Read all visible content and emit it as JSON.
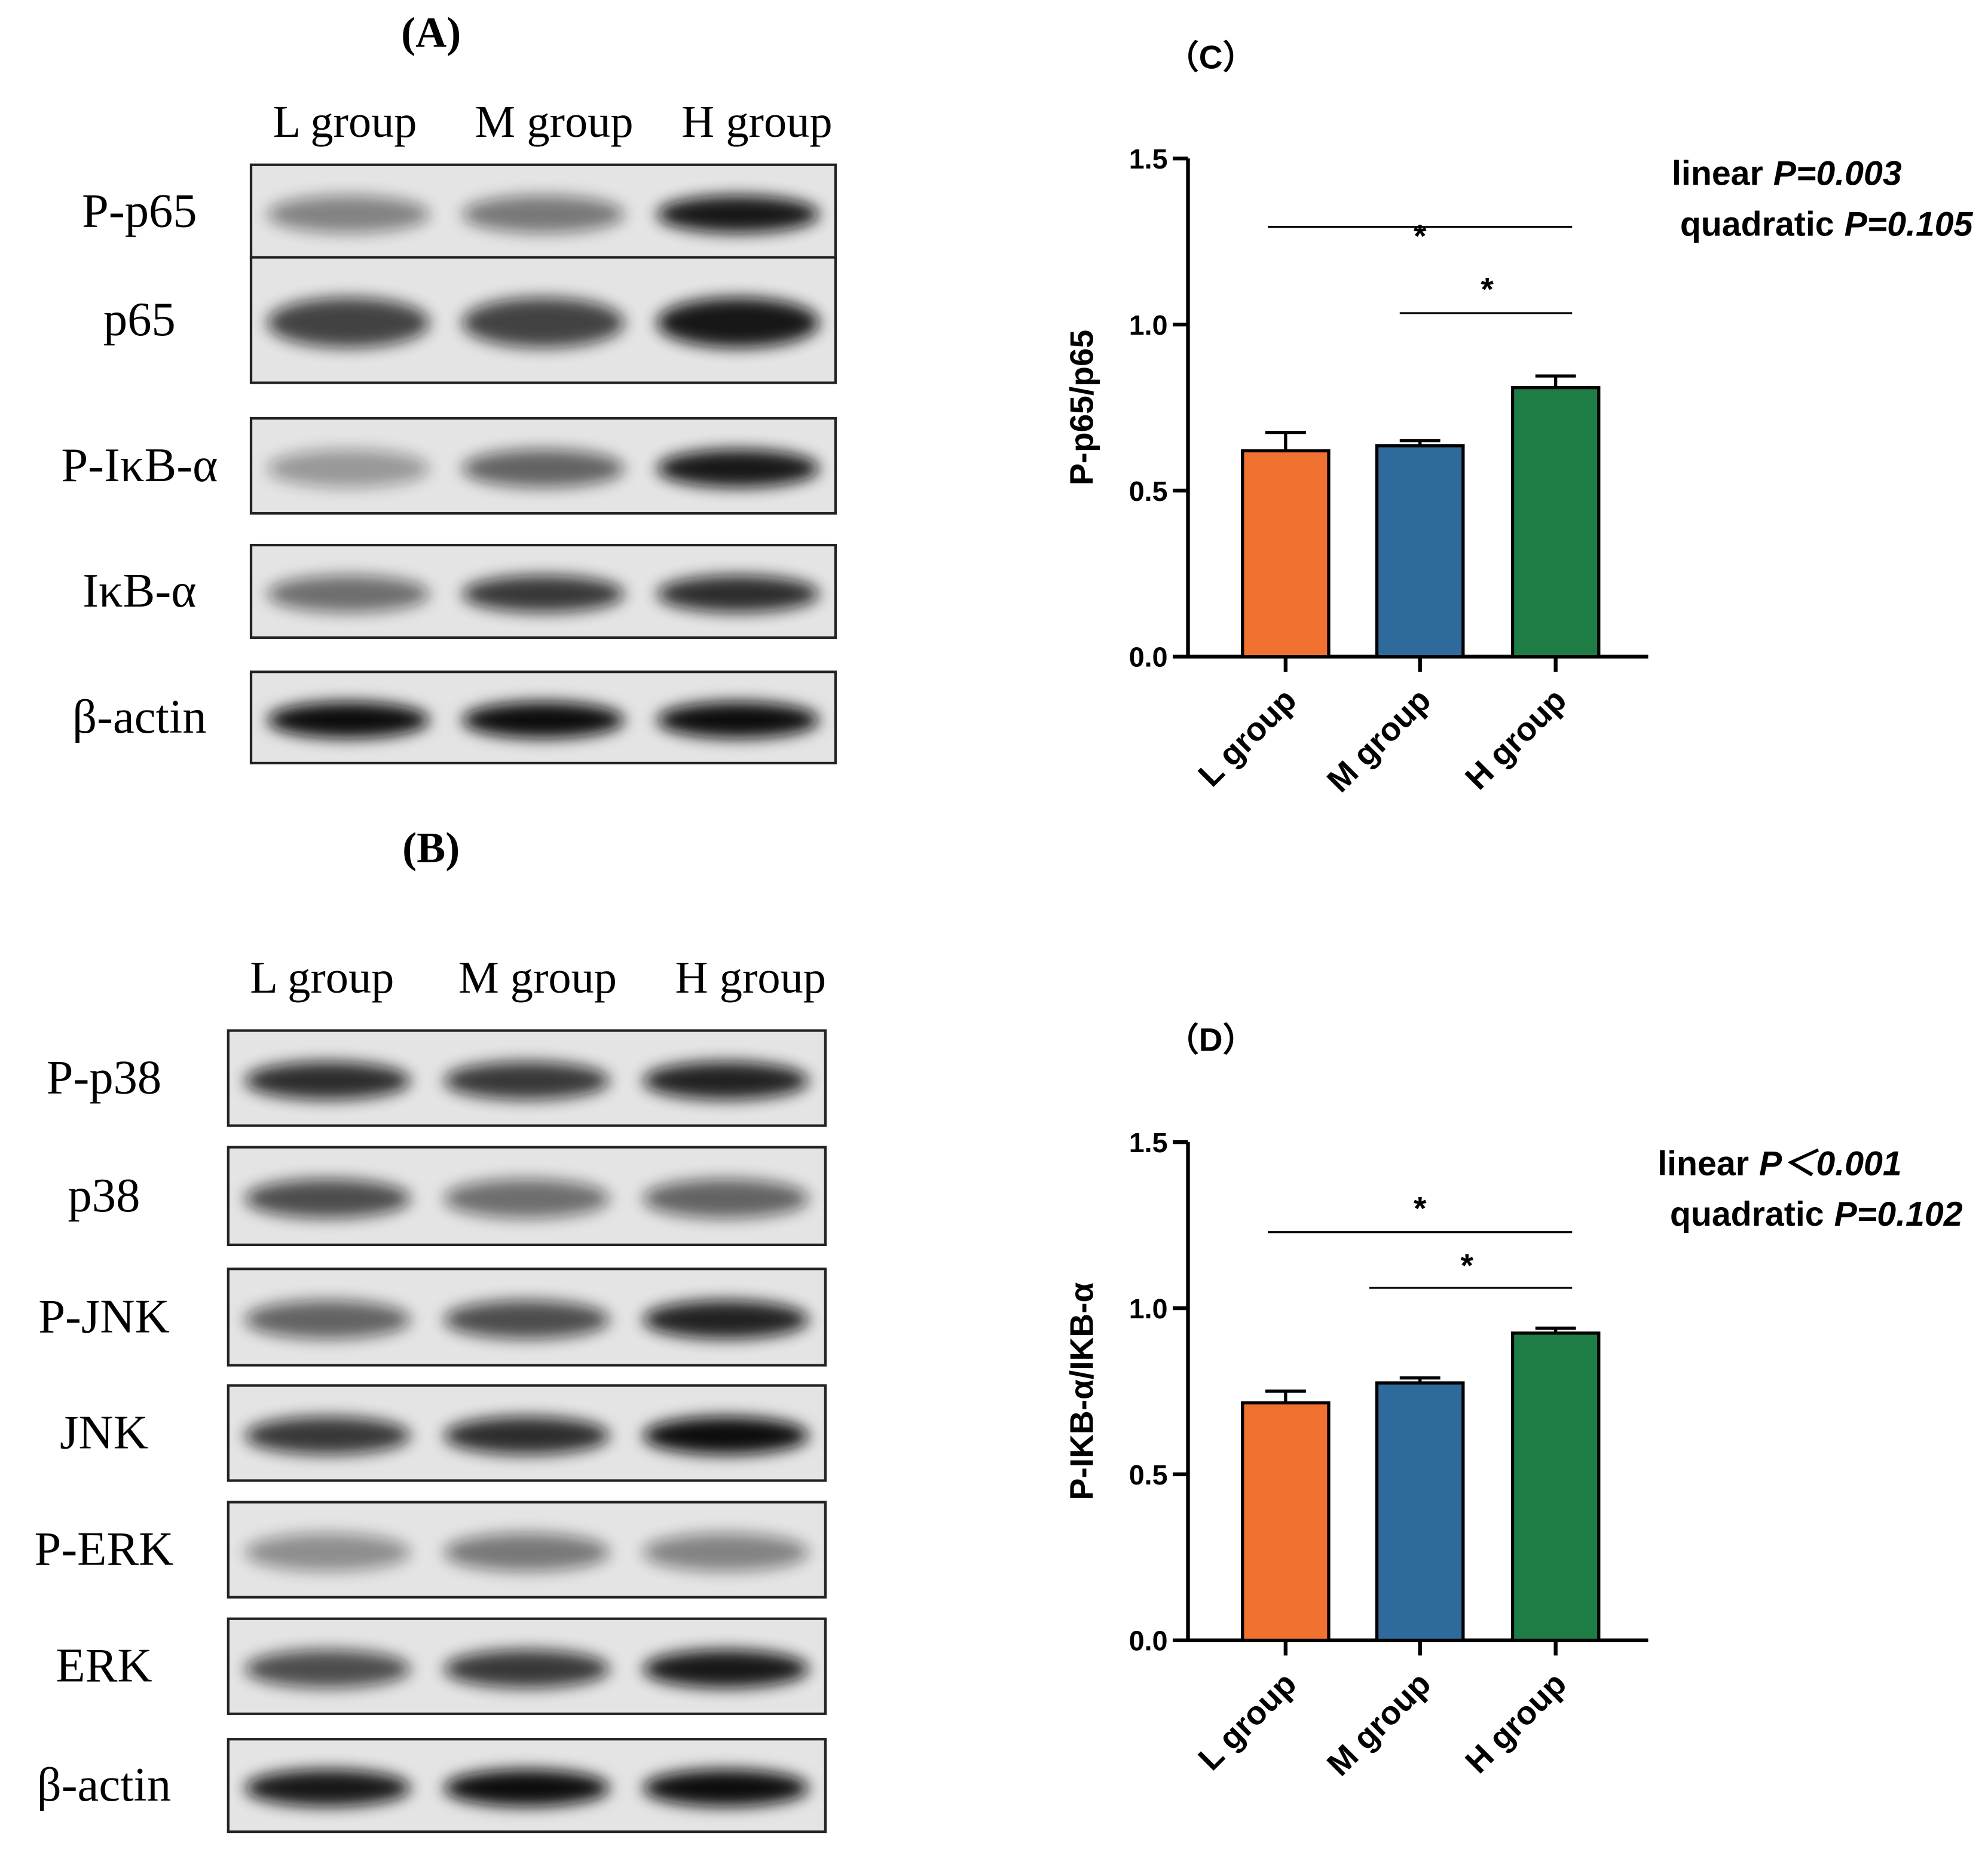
{
  "blots": [
    {
      "label": "(A)",
      "columns": [
        "L group",
        "M group",
        "H group"
      ],
      "rows": [
        "P-p65",
        "p65",
        "P-IκB-α",
        "IκB-α",
        "β-actin"
      ]
    },
    {
      "label": "(B)",
      "columns": [
        "L group",
        "M group",
        "H group"
      ],
      "rows": [
        "P-p38",
        "p38",
        "P-JNK",
        "JNK",
        "P-ERK",
        "ERK",
        "β-actin"
      ]
    }
  ],
  "chart_data": [
    {
      "type": "bar",
      "title": "（C）",
      "y_label": "P-p65/p65",
      "categories": [
        "L group",
        "M group",
        "H group"
      ],
      "values": [
        0.62,
        0.635,
        0.81
      ],
      "errors": [
        0.055,
        0.015,
        0.035
      ],
      "colors": [
        "#f07130",
        "#2e6b9c",
        "#1e7d45"
      ],
      "ylim": [
        0,
        1.5
      ],
      "yticks": [
        {
          "value": 0,
          "label": "0.0"
        },
        0.5,
        {
          "value": 1,
          "label": "1.0"
        },
        1.5
      ],
      "trend_tests": [
        {
          "name": "linear",
          "p": "P=0.003"
        },
        {
          "name": "quadratic",
          "p": "P=0.105"
        }
      ],
      "significance": [
        "*",
        "*"
      ]
    },
    {
      "type": "bar",
      "title": "（D）",
      "y_label": "P-IKB-α/IKB-α",
      "categories": [
        "L group",
        "M group",
        "H group"
      ],
      "values": [
        0.715,
        0.775,
        0.925
      ],
      "errors": [
        0.035,
        0.015,
        0.015
      ],
      "colors": [
        "#f07130",
        "#2e6b9c",
        "#1e7d45"
      ],
      "ylim": [
        0,
        1.5
      ],
      "yticks": [
        {
          "value": 0,
          "label": "0.0"
        },
        0.5,
        {
          "value": 1,
          "label": "1.0"
        },
        1.5
      ],
      "trend_tests": [
        {
          "name": "linear",
          "p": "P＜0.001"
        },
        {
          "name": "quadratic",
          "p": "P=0.102"
        }
      ],
      "significance": [
        "*",
        "*"
      ]
    }
  ]
}
